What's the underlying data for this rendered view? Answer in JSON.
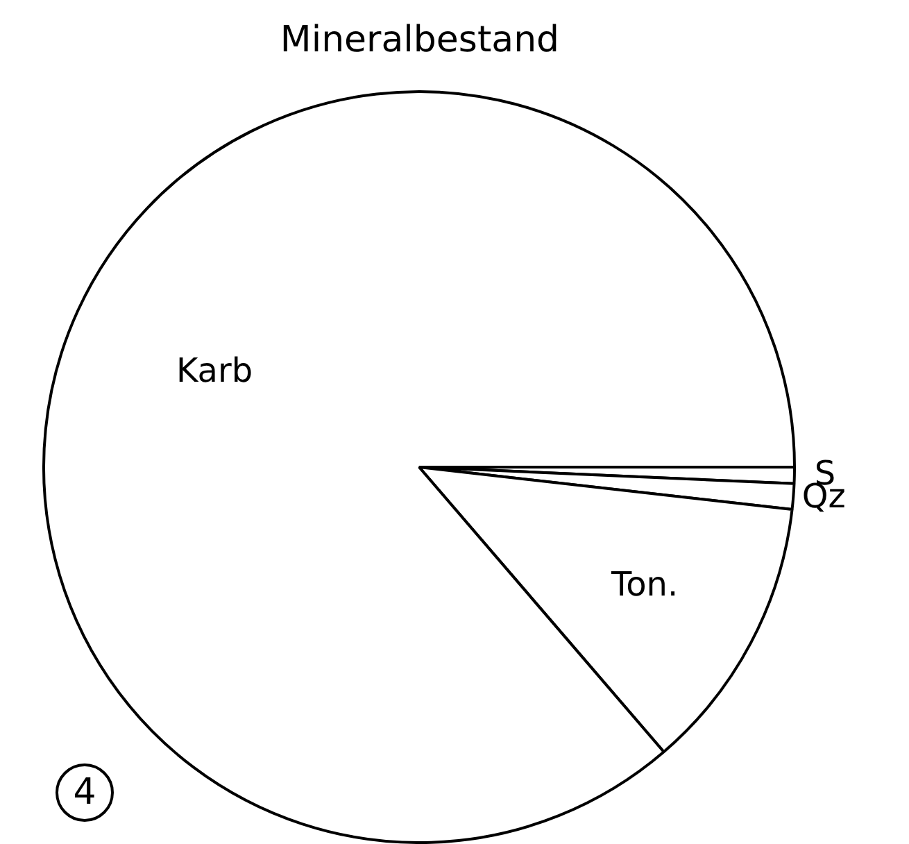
{
  "chart_data": {
    "type": "pie",
    "title": "Mineralbestand",
    "categories": [
      "S",
      "Qz",
      "Ton.",
      "Karb"
    ],
    "values": [
      0.7,
      1.1,
      11.9,
      86.3
    ],
    "colors": [
      "#ffffff",
      "#ffffff",
      "#ffffff",
      "#ffffff"
    ],
    "legend": false,
    "annotations": [
      "4"
    ]
  }
}
